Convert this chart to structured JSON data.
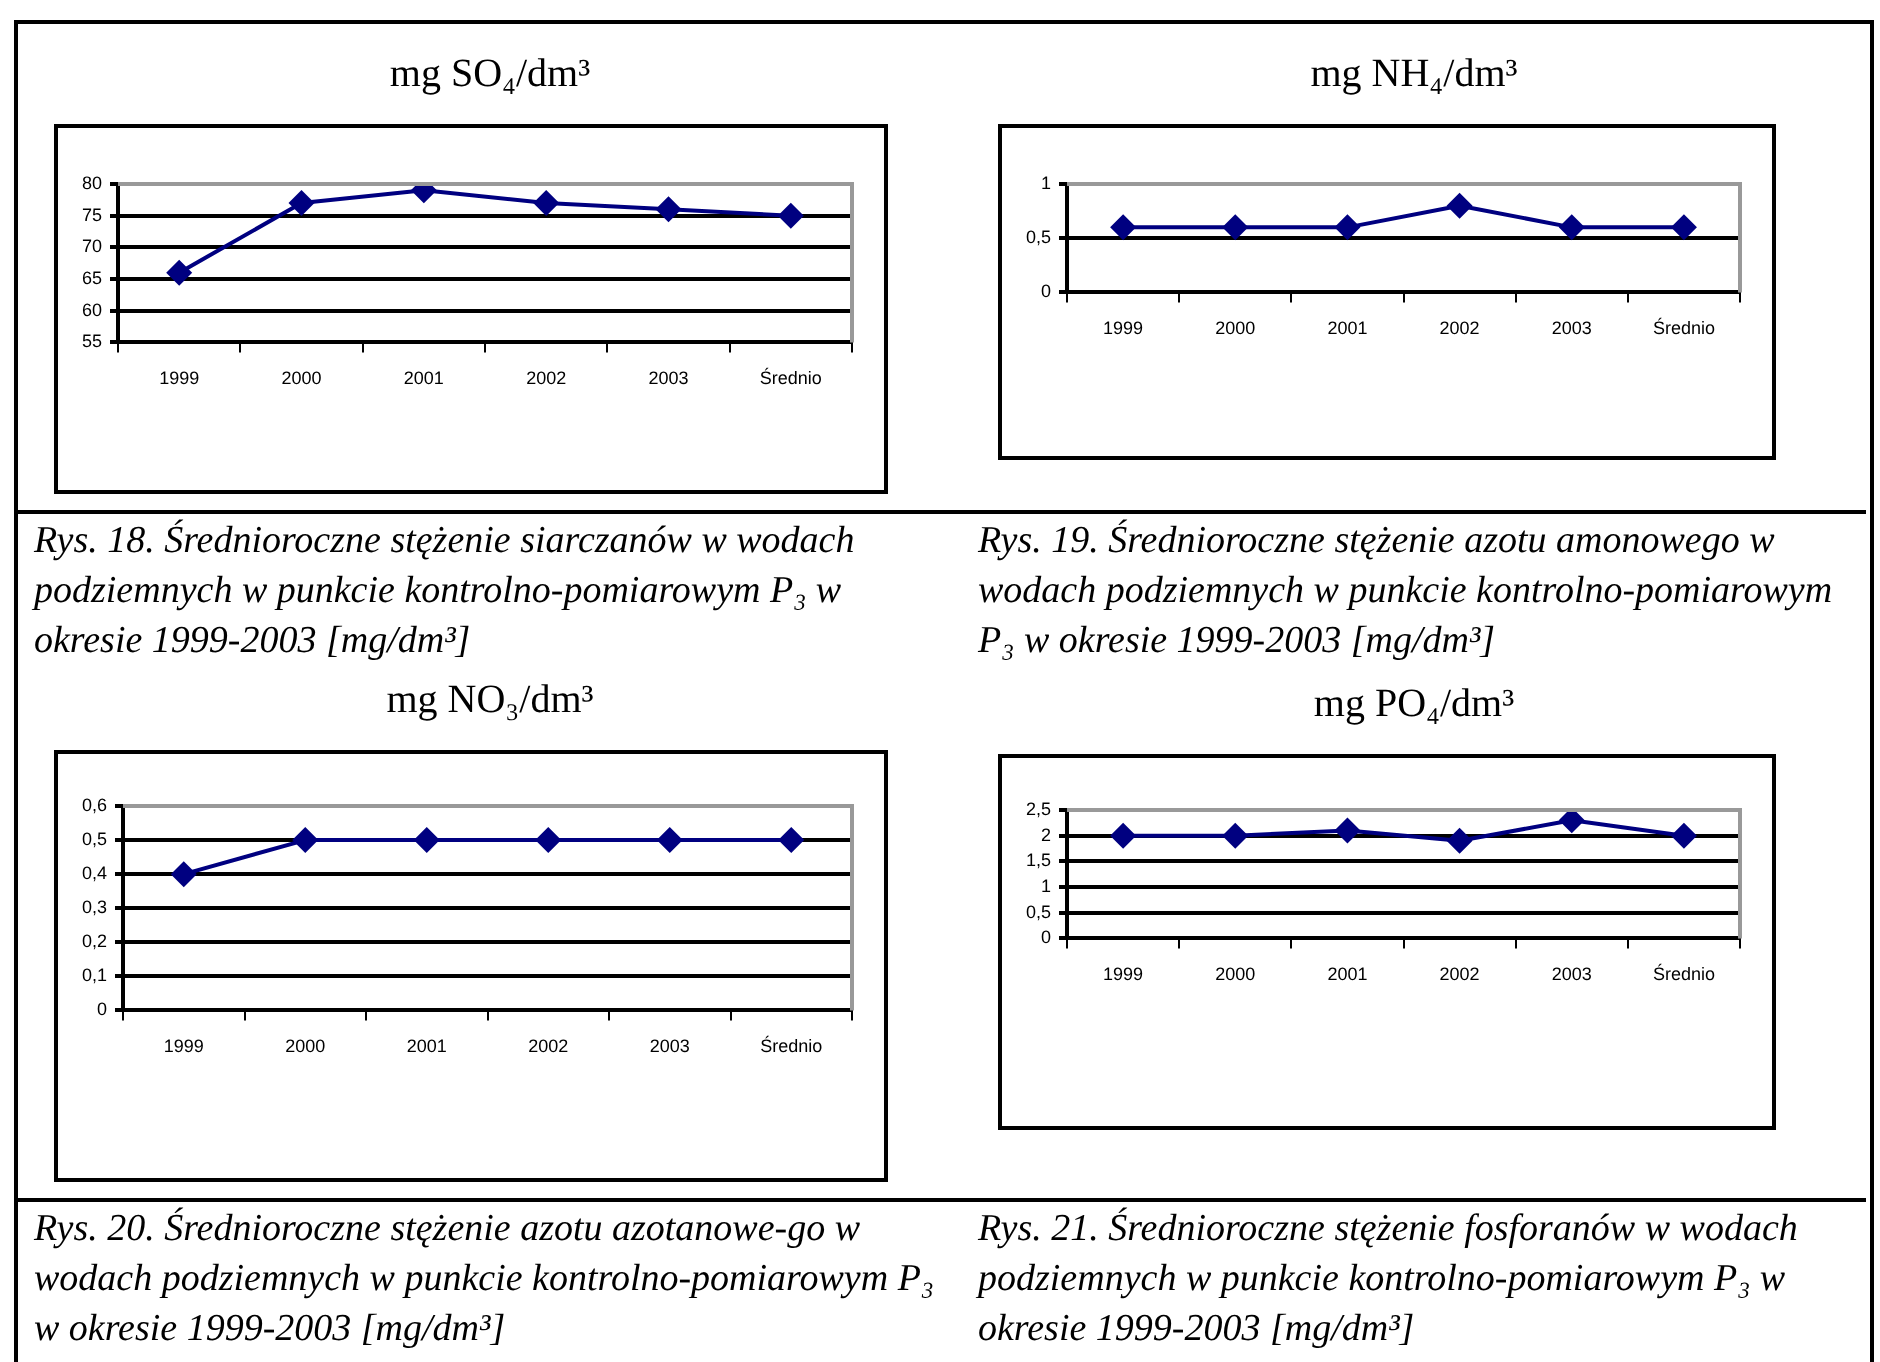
{
  "chart_data": [
    {
      "type": "line",
      "title": "mg SO₄/dm³",
      "categories": [
        "1999",
        "2000",
        "2001",
        "2002",
        "2003",
        "Średnio"
      ],
      "series": [
        {
          "color": "#000080",
          "values": [
            66,
            77,
            79,
            77,
            76,
            75
          ]
        }
      ],
      "ylim": [
        55,
        80
      ],
      "yticks": [
        55,
        60,
        65,
        70,
        75,
        80
      ],
      "grid": "y",
      "legend": false,
      "marker": "diamond",
      "line_style": "solid",
      "annotations": [
        "Rys. 18. Średnioroczne stężenie siarczanów w wodach podziemnych w punkcie kontrolno-pomiarowym P₃ w okresie 1999-2003 [mg/dm³]"
      ]
    },
    {
      "type": "line",
      "title": "mg NH₄/dm³",
      "categories": [
        "1999",
        "2000",
        "2001",
        "2002",
        "2003",
        "Średnio"
      ],
      "series": [
        {
          "color": "#000080",
          "values": [
            0.6,
            0.6,
            0.6,
            0.8,
            0.6,
            0.6
          ]
        }
      ],
      "ylim": [
        0,
        1
      ],
      "yticks": [
        0,
        {
          "value": 0.5,
          "label": "0,5"
        },
        1
      ],
      "grid": "y",
      "legend": false,
      "marker": "diamond",
      "line_style": "solid",
      "annotations": [
        "Rys. 19. Średnioroczne stężenie azotu amonowego w wodach podziemnych w punkcie kontrolno-pomiarowym P₃ w okresie 1999-2003 [mg/dm³]"
      ]
    },
    {
      "type": "line",
      "title": "mg NO₃/dm³",
      "categories": [
        "1999",
        "2000",
        "2001",
        "2002",
        "2003",
        "Średnio"
      ],
      "series": [
        {
          "color": "#000080",
          "values": [
            0.4,
            0.5,
            0.5,
            0.5,
            0.5,
            0.5
          ]
        }
      ],
      "ylim": [
        0,
        0.6
      ],
      "yticks": [
        0,
        {
          "value": 0.1,
          "label": "0,1"
        },
        {
          "value": 0.2,
          "label": "0,2"
        },
        {
          "value": 0.3,
          "label": "0,3"
        },
        {
          "value": 0.4,
          "label": "0,4"
        },
        {
          "value": 0.5,
          "label": "0,5"
        },
        {
          "value": 0.6,
          "label": "0,6"
        }
      ],
      "grid": "y",
      "legend": false,
      "marker": "diamond",
      "line_style": "solid",
      "annotations": [
        "Rys. 20. Średnioroczne stężenie azotu azotanowe-go w wodach podziemnych w punkcie kontrolno-pomiarowym P₃ w okresie 1999-2003 [mg/dm³]"
      ]
    },
    {
      "type": "line",
      "title": "mg PO₄/dm³",
      "categories": [
        "1999",
        "2000",
        "2001",
        "2002",
        "2003",
        "Średnio"
      ],
      "series": [
        {
          "color": "#000080",
          "values": [
            2,
            2,
            2.1,
            1.9,
            2.3,
            2
          ]
        }
      ],
      "ylim": [
        0,
        2.5
      ],
      "yticks": [
        0,
        {
          "value": 0.5,
          "label": "0,5"
        },
        1,
        {
          "value": 1.5,
          "label": "1,5"
        },
        2,
        {
          "value": 2.5,
          "label": "2,5"
        }
      ],
      "grid": "y",
      "legend": false,
      "marker": "diamond",
      "line_style": "solid",
      "annotations": [
        "Rys. 21. Średnioroczne stężenie fosforanów w wodach podziemnych w punkcie kontrolno-pomiarowym P₃ w okresie 1999-2003 [mg/dm³]"
      ]
    }
  ]
}
